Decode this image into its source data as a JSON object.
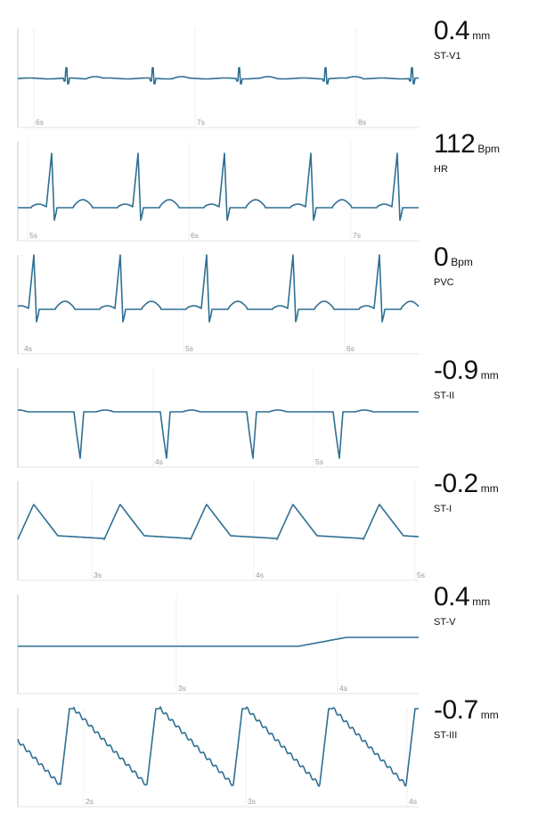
{
  "panels": [
    {
      "id": "st-v1",
      "value": "0.4",
      "unit": "mm",
      "label": "ST-V1",
      "ticks": [
        "6s",
        "7s",
        "8s"
      ],
      "wave": "qrs-small"
    },
    {
      "id": "hr",
      "value": "112",
      "unit": "Bpm",
      "label": "HR",
      "ticks": [
        "5s",
        "6s",
        "7s"
      ],
      "wave": "qrs-tall"
    },
    {
      "id": "pvc",
      "value": "0",
      "unit": "Bpm",
      "label": "PVC",
      "ticks": [
        "4s",
        "5s",
        "6s"
      ],
      "wave": "qrs-tall"
    },
    {
      "id": "st-ii",
      "value": "-0.9",
      "unit": "mm",
      "label": "ST-II",
      "ticks": [
        "4s",
        "5s"
      ],
      "wave": "qrs-inverted"
    },
    {
      "id": "st-i",
      "value": "-0.2",
      "unit": "mm",
      "label": "ST-I",
      "ticks": [
        "3s",
        "4s",
        "5s"
      ],
      "wave": "hump"
    },
    {
      "id": "st-v",
      "value": "0.4",
      "unit": "mm",
      "label": "ST-V",
      "ticks": [
        "3s",
        "4s"
      ],
      "wave": "flat"
    },
    {
      "id": "st-iii",
      "value": "-0.7",
      "unit": "mm",
      "label": "ST-III",
      "ticks": [
        "2s",
        "3s",
        "4s"
      ],
      "wave": "sawtooth"
    }
  ],
  "colors": {
    "trace": "#2f6f93",
    "grid": "#e3e3e3",
    "axis": "#c9c9c9",
    "tick": "#999999"
  },
  "chart_data": [
    {
      "type": "line",
      "label": "ST-V1",
      "x_ticks": [
        "6s",
        "7s",
        "8s"
      ],
      "readout": "0.4 mm"
    },
    {
      "type": "line",
      "label": "HR",
      "x_ticks": [
        "5s",
        "6s",
        "7s"
      ],
      "readout": "112 Bpm"
    },
    {
      "type": "line",
      "label": "PVC",
      "x_ticks": [
        "4s",
        "5s",
        "6s"
      ],
      "readout": "0 Bpm"
    },
    {
      "type": "line",
      "label": "ST-II",
      "x_ticks": [
        "4s",
        "5s"
      ],
      "readout": "-0.9 mm"
    },
    {
      "type": "line",
      "label": "ST-I",
      "x_ticks": [
        "3s",
        "4s",
        "5s"
      ],
      "readout": "-0.2 mm"
    },
    {
      "type": "line",
      "label": "ST-V",
      "x_ticks": [
        "3s",
        "4s"
      ],
      "readout": "0.4 mm"
    },
    {
      "type": "line",
      "label": "ST-III",
      "x_ticks": [
        "2s",
        "3s",
        "4s"
      ],
      "readout": "-0.7 mm"
    }
  ]
}
